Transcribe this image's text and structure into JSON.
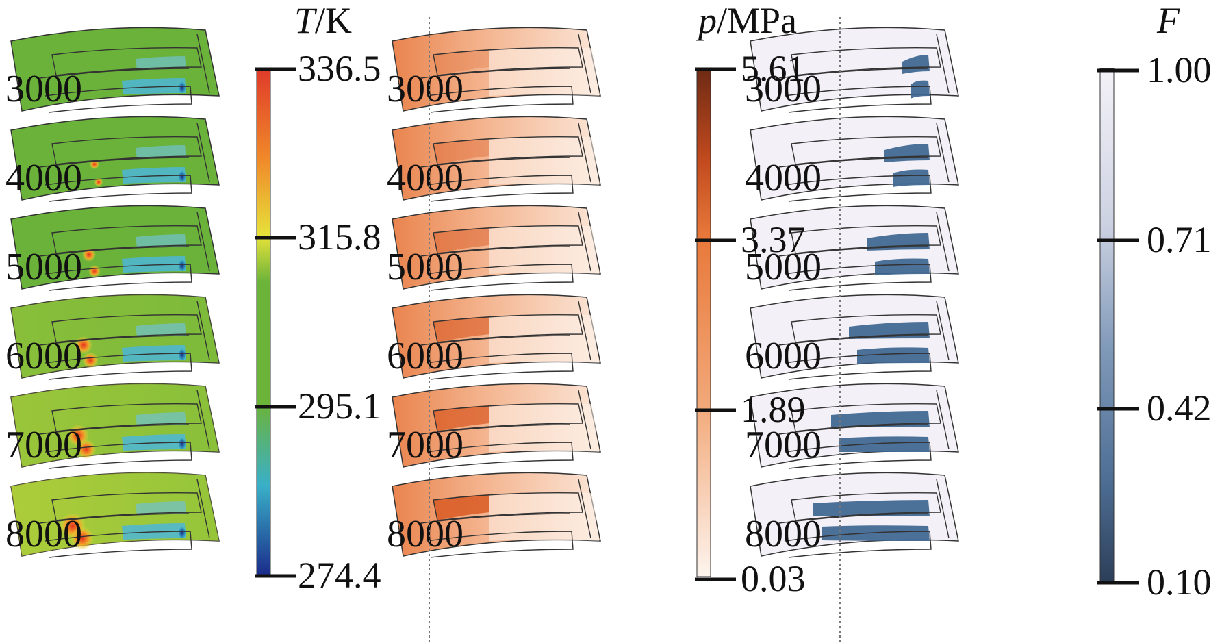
{
  "panels": [
    {
      "name": "temperature",
      "title_var": "T",
      "title_unit": "/K",
      "ticks": [
        "336.5",
        "315.8",
        "295.1",
        "274.4"
      ],
      "colorbar_stops": [
        "#e03a2a",
        "#f08a2a",
        "#e6e23a",
        "#6cb33a",
        "#3ab0b8",
        "#2a7cc8",
        "#1a2a8a"
      ],
      "base_color": "#6ab23a"
    },
    {
      "name": "pressure",
      "title_var": "p",
      "title_unit": "/MPa",
      "ticks": [
        "5.61",
        "3.37",
        "1.89",
        "0.03"
      ],
      "colorbar_stops": [
        "#6e2a14",
        "#c24a1e",
        "#e8783a",
        "#f2a878",
        "#f8d2bc",
        "#fdf4ee"
      ],
      "base_color": "#f9dcc8"
    },
    {
      "name": "fraction",
      "title_var": "F",
      "title_unit": "",
      "ticks": [
        "1.00",
        "0.71",
        "0.42",
        "0.10"
      ],
      "colorbar_stops": [
        "#f4f2f8",
        "#cdd2e2",
        "#94a8c4",
        "#5f80a6",
        "#3e5e82",
        "#2c3e58"
      ],
      "base_color": "#f3f1f7"
    }
  ],
  "speed_labels": [
    "3000",
    "4000",
    "5000",
    "6000",
    "7000",
    "8000"
  ]
}
